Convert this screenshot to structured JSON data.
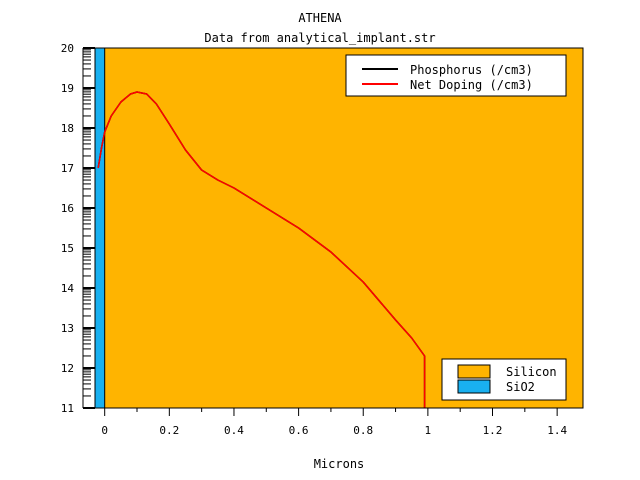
{
  "chart_data": {
    "type": "line",
    "title": "ATHENA",
    "subtitle": "Data from analytical_implant.str",
    "xlabel": "Microns",
    "ylabel": "",
    "xlim": [
      -0.03,
      1.48
    ],
    "ylim": [
      11,
      20
    ],
    "x_ticks": [
      0,
      0.2,
      0.4,
      0.6,
      0.8,
      1,
      1.2,
      1.4
    ],
    "x_tick_labels": [
      "0",
      "0.2",
      "0.4",
      "0.6",
      "0.8",
      "1",
      "1.2",
      "1.4"
    ],
    "y_ticks": [
      11,
      12,
      13,
      14,
      15,
      16,
      17,
      18,
      19,
      20
    ],
    "y_tick_labels": [
      "11",
      "12",
      "13",
      "14",
      "15",
      "16",
      "17",
      "18",
      "19",
      "20"
    ],
    "grid": false,
    "legend_position": "top-right",
    "regions": [
      {
        "name": "SiO2",
        "x_start": -0.03,
        "x_end": 0.0,
        "color": "#19b0f0"
      },
      {
        "name": "Silicon",
        "x_start": 0.0,
        "x_end": 1.48,
        "color": "#ffb400"
      }
    ],
    "regions_legend_position": "bottom-right",
    "series": [
      {
        "name": "Phosphorus (/cm3)",
        "color": "#000000",
        "x": [
          -0.02,
          -0.01,
          0.0,
          0.02,
          0.05,
          0.08,
          0.1,
          0.13,
          0.16,
          0.2,
          0.25,
          0.3,
          0.35,
          0.4,
          0.5,
          0.6,
          0.7,
          0.8,
          0.9,
          0.95,
          0.99,
          0.99
        ],
        "values": [
          17.0,
          17.5,
          17.9,
          18.3,
          18.65,
          18.85,
          18.9,
          18.85,
          18.6,
          18.1,
          17.45,
          16.95,
          16.7,
          16.5,
          16.0,
          15.5,
          14.9,
          14.15,
          13.2,
          12.75,
          12.3,
          11.0
        ]
      },
      {
        "name": "Net Doping (/cm3)",
        "color": "#ff0000",
        "x": [
          -0.02,
          -0.01,
          0.0,
          0.02,
          0.05,
          0.08,
          0.1,
          0.13,
          0.16,
          0.2,
          0.25,
          0.3,
          0.35,
          0.4,
          0.5,
          0.6,
          0.7,
          0.8,
          0.9,
          0.95,
          0.99,
          0.99
        ],
        "values": [
          17.0,
          17.5,
          17.9,
          18.3,
          18.65,
          18.85,
          18.9,
          18.85,
          18.6,
          18.1,
          17.45,
          16.95,
          16.7,
          16.5,
          16.0,
          15.5,
          14.9,
          14.15,
          13.2,
          12.75,
          12.3,
          11.0
        ]
      }
    ]
  }
}
